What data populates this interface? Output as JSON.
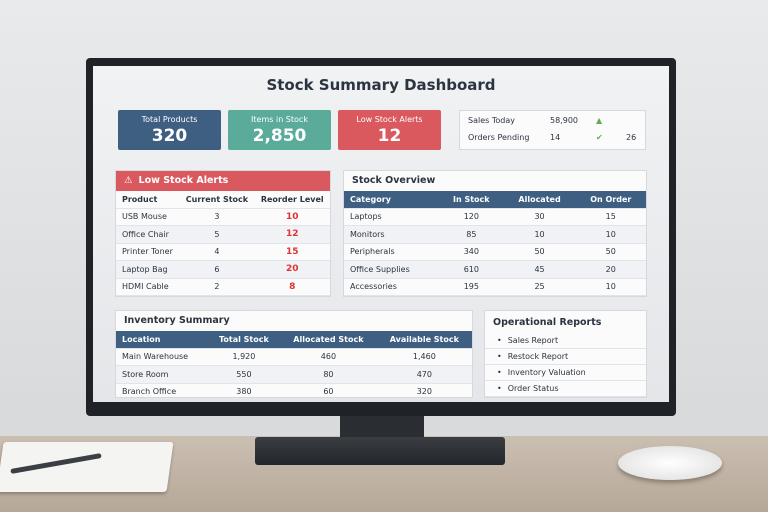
{
  "header": {
    "title": "Stock Summary Dashboard"
  },
  "cards": [
    {
      "label": "Total Products",
      "value": "320"
    },
    {
      "label": "Items in Stock",
      "value": "2,850"
    },
    {
      "label": "Low Stock Alerts",
      "value": "12"
    }
  ],
  "quick_stats": [
    {
      "label": "Sales Today",
      "value": "58,900"
    },
    {
      "label": "Orders Pending",
      "value": "14",
      "trend": "26"
    }
  ],
  "low_stock": {
    "title": "Low Stock Alerts",
    "columns": [
      "Product",
      "Current Stock",
      "Reorder Level"
    ],
    "rows": [
      [
        "USB Mouse",
        "3",
        "10"
      ],
      [
        "Office Chair",
        "5",
        "12"
      ],
      [
        "Printer Toner",
        "4",
        "15"
      ],
      [
        "Laptop Bag",
        "6",
        "20"
      ],
      [
        "HDMI Cable",
        "2",
        "8"
      ]
    ]
  },
  "stock_overview": {
    "title": "Stock Overview",
    "columns": [
      "Category",
      "In Stock",
      "Allocated",
      "On Order"
    ],
    "rows": [
      [
        "Laptops",
        "120",
        "30",
        "15"
      ],
      [
        "Monitors",
        "85",
        "10",
        "10"
      ],
      [
        "Peripherals",
        "340",
        "50",
        "50"
      ],
      [
        "Office Supplies",
        "610",
        "45",
        "20"
      ],
      [
        "Accessories",
        "195",
        "25",
        "10"
      ]
    ]
  },
  "inventory_summary": {
    "title": "Inventory Summary",
    "columns": [
      "Location",
      "Total Stock",
      "Allocated Stock",
      "Available Stock"
    ],
    "rows": [
      [
        "Main Warehouse",
        "1,920",
        "460",
        "1,460"
      ],
      [
        "Store Room",
        "550",
        "80",
        "470"
      ],
      [
        "Branch Office",
        "380",
        "60",
        "320"
      ]
    ]
  },
  "reports": {
    "title": "Operational Reports",
    "items": [
      "Sales Report",
      "Restock Report",
      "Inventory Valuation",
      "Order Status"
    ]
  }
}
